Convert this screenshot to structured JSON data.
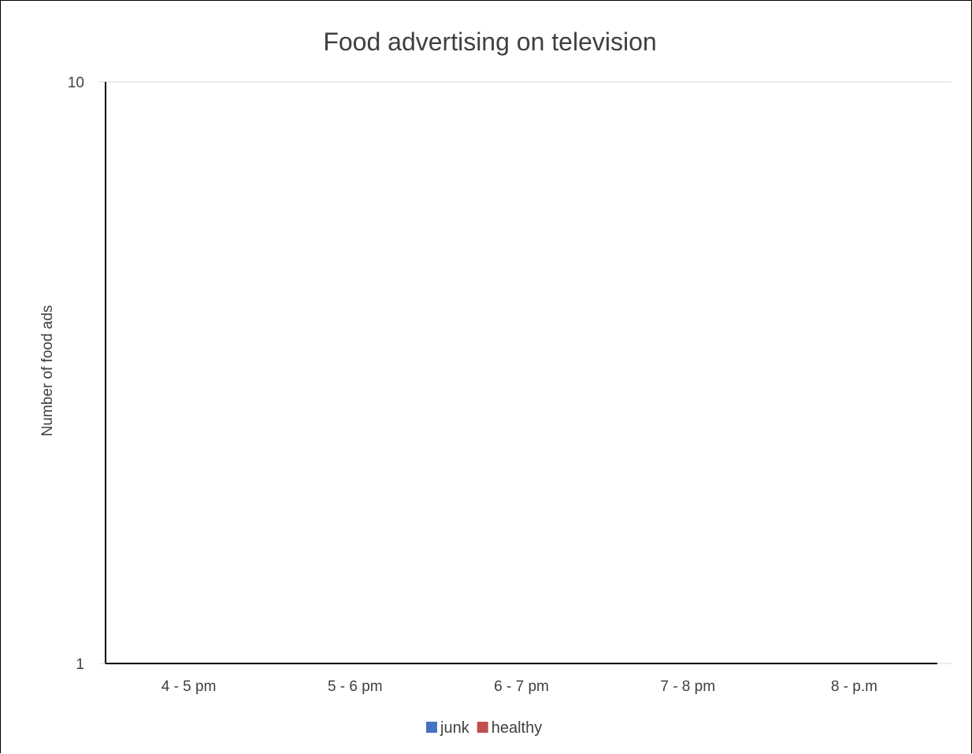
{
  "chart_data": {
    "type": "bar",
    "title": "Food advertising on television",
    "xlabel": "",
    "ylabel": "Number of food ads",
    "categories": [
      "4 - 5 pm",
      "5 - 6 pm",
      "6 - 7 pm",
      "7 - 8 pm",
      "8 - p.m"
    ],
    "series": [
      {
        "name": "junk",
        "color": "#4472C4",
        "values": [
          null,
          null,
          null,
          null,
          null
        ]
      },
      {
        "name": "healthy",
        "color": "#C0504D",
        "values": [
          null,
          null,
          null,
          null,
          null
        ]
      }
    ],
    "ylim": [
      1,
      10
    ],
    "yscale": "log",
    "yticks": [
      "1",
      "10"
    ],
    "grid": true,
    "legend_position": "bottom"
  }
}
